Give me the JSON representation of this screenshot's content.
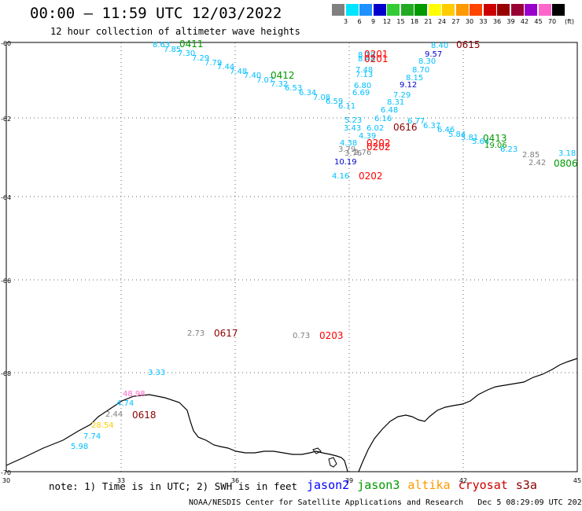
{
  "title": "00:00 – 11:59 UTC 12/03/2022",
  "subtitle": "12 hour collection of altimeter wave heights",
  "colorbar": {
    "colors": [
      "#808080",
      "#00e5ff",
      "#1e90ff",
      "#0000cd",
      "#33cc33",
      "#22aa22",
      "#009900",
      "#ffff00",
      "#ffcc00",
      "#ff9900",
      "#ff4500",
      "#cc0000",
      "#990000",
      "#990033",
      "#9900cc",
      "#ff66cc",
      "#000000"
    ],
    "ticks": [
      "3",
      "6",
      "9",
      "12",
      "15",
      "18",
      "21",
      "24",
      "27",
      "30",
      "33",
      "36",
      "39",
      "42",
      "45",
      "70"
    ],
    "unit": "(ft)"
  },
  "axes": {
    "lat_labels": [
      "-60",
      "-62",
      "-64",
      "-66",
      "-68",
      "-70"
    ],
    "lon_labels": [
      "30",
      "33",
      "36",
      "39",
      "42",
      "45"
    ]
  },
  "map_data": {
    "projection": "polar",
    "lon_range": [
      30,
      45
    ],
    "lat_range": [
      -70,
      -60
    ],
    "coast": "Antarctic coastline (Queen Maud Land)",
    "grid": "dotted",
    "observations": [
      {
        "v": "8.63",
        "c": "#00bfff"
      },
      {
        "v": "7.85",
        "c": "#00bfff"
      },
      {
        "v": "7.30",
        "c": "#00bfff"
      },
      {
        "v": "7.29",
        "c": "#00bfff"
      },
      {
        "v": "7.79",
        "c": "#00bfff"
      },
      {
        "v": "7.44",
        "c": "#00bfff"
      },
      {
        "v": "7.48",
        "c": "#00bfff"
      },
      {
        "v": "7.40",
        "c": "#00bfff"
      },
      {
        "v": "7.07",
        "c": "#00bfff"
      },
      {
        "v": "7.32",
        "c": "#00bfff"
      },
      {
        "v": "6.53",
        "c": "#00bfff"
      },
      {
        "v": "6.34",
        "c": "#00bfff"
      },
      {
        "v": "7.08",
        "c": "#00bfff"
      },
      {
        "v": "6.59",
        "c": "#00bfff"
      },
      {
        "v": "6.11",
        "c": "#00bfff"
      },
      {
        "v": "5.23",
        "c": "#00bfff"
      },
      {
        "v": "3.43",
        "c": "#00bfff"
      },
      {
        "v": "6.02",
        "c": "#00bfff"
      },
      {
        "v": "4.38",
        "c": "#00bfff"
      },
      {
        "v": "4.39",
        "c": "#00bfff"
      },
      {
        "v": "3.79",
        "c": "#808080"
      },
      {
        "v": "3.76",
        "c": "#808080"
      },
      {
        "v": "2.76",
        "c": "#808080"
      },
      {
        "v": "10.19",
        "c": "#0000cd"
      },
      {
        "v": "4.16",
        "c": "#00bfff"
      },
      {
        "v": "8.19",
        "c": "#00bfff"
      },
      {
        "v": "8.48",
        "c": "#00bfff"
      },
      {
        "v": "7.48",
        "c": "#00bfff"
      },
      {
        "v": "7.13",
        "c": "#00bfff"
      },
      {
        "v": "6.80",
        "c": "#00bfff"
      },
      {
        "v": "6.69",
        "c": "#00bfff"
      },
      {
        "v": "8.40",
        "c": "#00bfff"
      },
      {
        "v": "9.57",
        "c": "#0000cd"
      },
      {
        "v": "8.30",
        "c": "#00bfff"
      },
      {
        "v": "8.70",
        "c": "#00bfff"
      },
      {
        "v": "8.15",
        "c": "#00bfff"
      },
      {
        "v": "9.12",
        "c": "#0000cd"
      },
      {
        "v": "7.29",
        "c": "#00bfff"
      },
      {
        "v": "8.31",
        "c": "#00bfff"
      },
      {
        "v": "6.48",
        "c": "#00bfff"
      },
      {
        "v": "6.16",
        "c": "#00bfff"
      },
      {
        "v": "6.77",
        "c": "#00bfff"
      },
      {
        "v": "6.37",
        "c": "#00bfff"
      },
      {
        "v": "6.46",
        "c": "#00bfff"
      },
      {
        "v": "5.84",
        "c": "#00bfff"
      },
      {
        "v": "5.81",
        "c": "#00bfff"
      },
      {
        "v": "5.64",
        "c": "#00bfff"
      },
      {
        "v": "19.06",
        "c": "#009900"
      },
      {
        "v": "6.23",
        "c": "#00bfff"
      },
      {
        "v": "2.85",
        "c": "#808080"
      },
      {
        "v": "2.42",
        "c": "#808080"
      },
      {
        "v": "3.18",
        "c": "#00bfff"
      },
      {
        "v": "2.73",
        "c": "#808080"
      },
      {
        "v": "0.73",
        "c": "#808080"
      },
      {
        "v": "3.33",
        "c": "#00bfff"
      },
      {
        "v": "48.98",
        "c": "#ff66cc"
      },
      {
        "v": "4.74",
        "c": "#00bfff"
      },
      {
        "v": "2.44",
        "c": "#808080"
      },
      {
        "v": "28.54",
        "c": "#ffcc00"
      },
      {
        "v": "7.74",
        "c": "#00bfff"
      },
      {
        "v": "5.98",
        "c": "#00bfff"
      }
    ],
    "time_labels": [
      {
        "t": "0411",
        "c": "#009900"
      },
      {
        "t": "0412",
        "c": "#009900"
      },
      {
        "t": "0201",
        "c": "#ff0000"
      },
      {
        "t": "0201",
        "c": "#ff0000"
      },
      {
        "t": "0615",
        "c": "#8b0000"
      },
      {
        "t": "0616",
        "c": "#8b0000"
      },
      {
        "t": "0202",
        "c": "#ff0000"
      },
      {
        "t": "0202",
        "c": "#ff0000"
      },
      {
        "t": "0202",
        "c": "#ff0000"
      },
      {
        "t": "0413",
        "c": "#009900"
      },
      {
        "t": "0806",
        "c": "#009900"
      },
      {
        "t": "0617",
        "c": "#8b0000"
      },
      {
        "t": "0203",
        "c": "#ff0000"
      },
      {
        "t": "0618",
        "c": "#8b0000"
      }
    ]
  },
  "note": "note: 1) Time is in UTC; 2) SWH is in feet",
  "legend": [
    {
      "name": "jason2",
      "color": "#0000ff"
    },
    {
      "name": "jason3",
      "color": "#009900"
    },
    {
      "name": "altika",
      "color": "#ff9900"
    },
    {
      "name": "cryosat",
      "color": "#cc0000"
    },
    {
      "name": "s3a",
      "color": "#8b0000"
    }
  ],
  "credit": "NOAA/NESDIS Center for Satellite Applications and Research",
  "timestamp": "Dec  5 08:29:09 UTC 2022"
}
